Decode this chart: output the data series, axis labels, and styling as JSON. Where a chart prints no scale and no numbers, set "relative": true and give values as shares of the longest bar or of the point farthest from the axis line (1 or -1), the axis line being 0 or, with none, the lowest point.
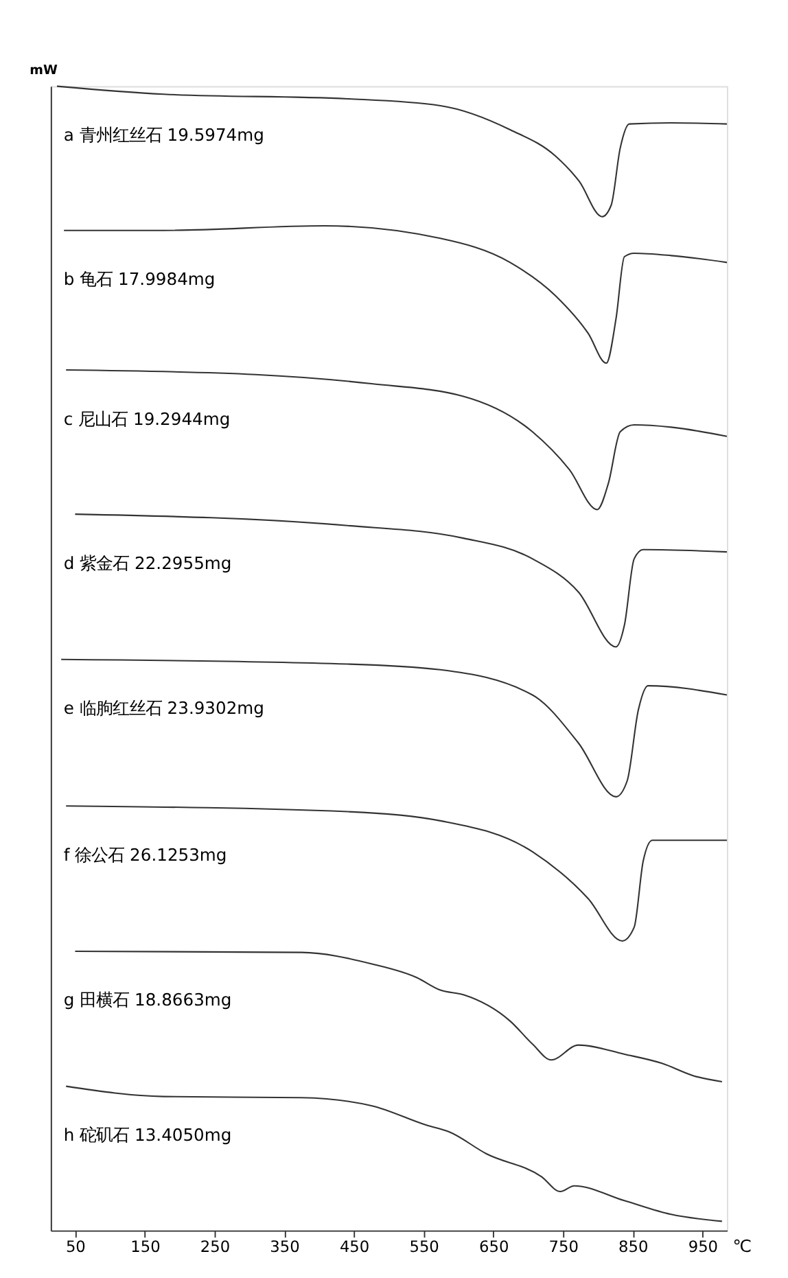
{
  "chart_data": {
    "type": "line",
    "relative": true,
    "xlabel": "℃",
    "ylabel": "mW",
    "xlim": [
      15,
      985
    ],
    "xticks": [
      50,
      150,
      250,
      350,
      450,
      550,
      650,
      750,
      850,
      950
    ],
    "grid": false,
    "marker": "none",
    "line_style": "solid",
    "series": [
      {
        "name": "a 青州红丝石 19.5974mg",
        "color": "#333333",
        "x": [
          24,
          177,
          441,
          574,
          674,
          739,
          773,
          806,
          819,
          832,
          845,
          905,
          985
        ],
        "values": [
          1.0,
          0.993,
          0.989,
          0.983,
          0.962,
          0.939,
          0.917,
          0.886,
          0.896,
          0.946,
          0.967,
          0.968,
          0.967
        ]
      },
      {
        "name": "b 龟石 17.9984mg",
        "color": "#333333",
        "x": [
          34,
          177,
          408,
          574,
          674,
          739,
          786,
          812,
          826,
          838,
          852,
          905,
          985
        ],
        "values": [
          0.874,
          0.874,
          0.878,
          0.867,
          0.846,
          0.817,
          0.784,
          0.758,
          0.797,
          0.851,
          0.854,
          0.852,
          0.846
        ]
      },
      {
        "name": "c 尼山石 19.2944mg",
        "color": "#333333",
        "x": [
          37,
          309,
          475,
          607,
          706,
          759,
          799,
          815,
          832,
          852,
          905,
          985
        ],
        "values": [
          0.752,
          0.748,
          0.74,
          0.729,
          0.698,
          0.665,
          0.63,
          0.653,
          0.698,
          0.704,
          0.702,
          0.694
        ]
      },
      {
        "name": "d 紫金石 22.2955mg",
        "color": "#333333",
        "x": [
          50,
          441,
          607,
          706,
          772,
          826,
          838,
          852,
          865,
          985
        ],
        "values": [
          0.626,
          0.616,
          0.605,
          0.587,
          0.558,
          0.51,
          0.529,
          0.587,
          0.595,
          0.593
        ]
      },
      {
        "name": "e 临朐红丝石 23.9302mg",
        "color": "#333333",
        "x": [
          30,
          441,
          574,
          706,
          772,
          826,
          842,
          858,
          872,
          985
        ],
        "values": [
          0.499,
          0.495,
          0.49,
          0.468,
          0.426,
          0.379,
          0.393,
          0.455,
          0.476,
          0.468
        ]
      },
      {
        "name": "f 徐公石 26.1253mg",
        "color": "#333333",
        "x": [
          37,
          441,
          574,
          706,
          786,
          835,
          852,
          865,
          878,
          985
        ],
        "values": [
          0.371,
          0.366,
          0.358,
          0.331,
          0.29,
          0.253,
          0.265,
          0.323,
          0.341,
          0.341
        ]
      },
      {
        "name": "g 田横石 18.8663mg",
        "color": "#333333",
        "x": [
          50,
          375,
          475,
          540,
          574,
          607,
          674,
          706,
          733,
          772,
          838,
          892,
          938,
          978
        ],
        "values": [
          0.244,
          0.243,
          0.233,
          0.221,
          0.21,
          0.206,
          0.183,
          0.163,
          0.149,
          0.162,
          0.154,
          0.146,
          0.135,
          0.13
        ]
      },
      {
        "name": "h 砣矶石 13.4050mg",
        "color": "#333333",
        "x": [
          37,
          177,
          375,
          475,
          554,
          587,
          640,
          719,
          746,
          766,
          838,
          905,
          978
        ],
        "values": [
          0.126,
          0.117,
          0.116,
          0.109,
          0.092,
          0.086,
          0.067,
          0.047,
          0.034,
          0.039,
          0.026,
          0.014,
          0.008
        ]
      }
    ]
  }
}
